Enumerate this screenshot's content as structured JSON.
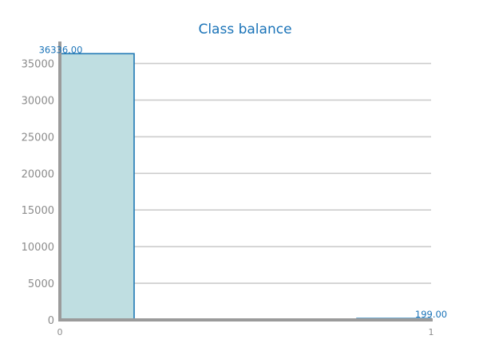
{
  "chart_data": {
    "type": "bar",
    "title": "Class balance",
    "xlabel": "",
    "ylabel": "",
    "categories": [
      "0",
      "1"
    ],
    "values": [
      36336,
      199
    ],
    "value_labels": [
      "36336.00",
      "199.00"
    ],
    "ylim": [
      0,
      38000
    ],
    "yticks": [
      0,
      5000,
      10000,
      15000,
      20000,
      25000,
      30000,
      35000
    ],
    "xlim": [
      0,
      1
    ],
    "xticks": [
      0,
      1
    ],
    "grid": true,
    "legend": "none",
    "colors": {
      "bar_fill": "#bfdee1",
      "bar_stroke": "#1f78b4",
      "title": "#1a73b8",
      "axis": "#9b9b9b",
      "grid": "#cccccc",
      "tick_text": "#8c8c8c",
      "data_label": "#1a73b8"
    }
  }
}
